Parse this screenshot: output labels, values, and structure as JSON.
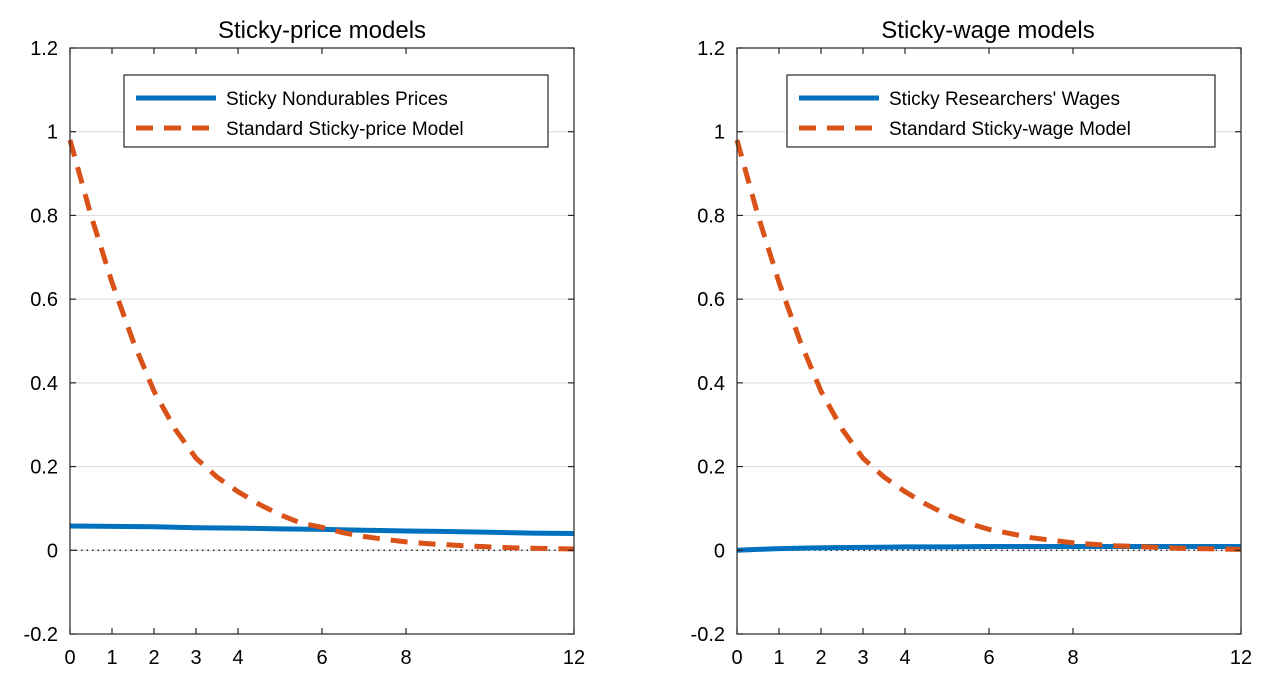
{
  "chart_data": [
    {
      "type": "line",
      "title": "Sticky-price models",
      "xlabel": "",
      "ylabel": "",
      "xlim": [
        0,
        12
      ],
      "ylim": [
        -0.2,
        1.2
      ],
      "xticks": [
        0,
        1,
        2,
        3,
        4,
        6,
        8,
        12
      ],
      "yticks": [
        -0.2,
        0,
        0.2,
        0.4,
        0.6,
        0.8,
        1,
        1.2
      ],
      "ytick_labels": [
        "-0.2",
        "0",
        "0.2",
        "0.4",
        "0.6",
        "0.8",
        "1",
        "1.2"
      ],
      "grid": "horizontal",
      "legend_position": "top-right",
      "zero_line": true,
      "series": [
        {
          "name": "Sticky Nondurables Prices",
          "style": "solid",
          "color": "#0072BD",
          "x": [
            0,
            1,
            2,
            3,
            4,
            5,
            6,
            7,
            8,
            9,
            10,
            11,
            12
          ],
          "values": [
            0.058,
            0.057,
            0.056,
            0.054,
            0.053,
            0.051,
            0.05,
            0.048,
            0.046,
            0.045,
            0.043,
            0.041,
            0.04
          ]
        },
        {
          "name": "Standard Sticky-price Model",
          "style": "dashed",
          "color": "#D95319",
          "x": [
            0,
            0.5,
            1,
            1.5,
            2,
            2.5,
            3,
            3.5,
            4,
            4.5,
            5,
            5.5,
            6,
            6.5,
            7,
            7.5,
            8,
            8.5,
            9,
            9.5,
            10,
            10.5,
            11,
            11.5,
            12
          ],
          "values": [
            0.98,
            0.8,
            0.64,
            0.5,
            0.38,
            0.29,
            0.22,
            0.175,
            0.14,
            0.11,
            0.085,
            0.065,
            0.055,
            0.042,
            0.033,
            0.026,
            0.02,
            0.016,
            0.013,
            0.01,
            0.008,
            0.006,
            0.005,
            0.004,
            0.003
          ]
        }
      ]
    },
    {
      "type": "line",
      "title": "Sticky-wage models",
      "xlabel": "",
      "ylabel": "",
      "xlim": [
        0,
        12
      ],
      "ylim": [
        -0.2,
        1.2
      ],
      "xticks": [
        0,
        1,
        2,
        3,
        4,
        6,
        8,
        12
      ],
      "yticks": [
        -0.2,
        0,
        0.2,
        0.4,
        0.6,
        0.8,
        1,
        1.2
      ],
      "ytick_labels": [
        "-0.2",
        "0",
        "0.2",
        "0.4",
        "0.6",
        "0.8",
        "1",
        "1.2"
      ],
      "grid": "horizontal",
      "legend_position": "top-right",
      "zero_line": true,
      "series": [
        {
          "name": "Sticky Researchers' Wages",
          "style": "solid",
          "color": "#0072BD",
          "x": [
            0,
            0.5,
            1,
            2,
            3,
            4,
            5,
            6,
            7,
            8,
            9,
            10,
            11,
            12
          ],
          "values": [
            0.0,
            0.002,
            0.004,
            0.006,
            0.007,
            0.008,
            0.008,
            0.009,
            0.009,
            0.009,
            0.009,
            0.009,
            0.009,
            0.009
          ]
        },
        {
          "name": "Standard Sticky-wage Model",
          "style": "dashed",
          "color": "#D95319",
          "x": [
            0,
            0.5,
            1,
            1.5,
            2,
            2.5,
            3,
            3.5,
            4,
            4.5,
            5,
            5.5,
            6,
            6.5,
            7,
            7.5,
            8,
            8.5,
            9,
            9.5,
            10,
            10.5,
            11,
            11.5,
            12
          ],
          "values": [
            0.98,
            0.8,
            0.64,
            0.5,
            0.38,
            0.29,
            0.22,
            0.175,
            0.14,
            0.11,
            0.085,
            0.065,
            0.05,
            0.04,
            0.03,
            0.024,
            0.018,
            0.014,
            0.011,
            0.009,
            0.007,
            0.005,
            0.004,
            0.003,
            0.002
          ]
        }
      ]
    }
  ]
}
